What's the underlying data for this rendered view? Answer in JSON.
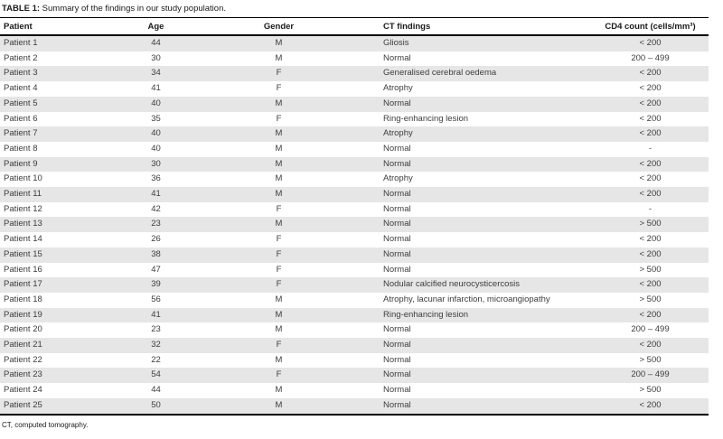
{
  "table": {
    "title_label": "TABLE 1:",
    "title_text": " Summary of the findings in our study population.",
    "columns": [
      "Patient",
      "Age",
      "Gender",
      "CT findings",
      "CD4 count (cells/mm³)"
    ],
    "rows": [
      [
        "Patient 1",
        "44",
        "M",
        "Gliosis",
        "< 200"
      ],
      [
        "Patient 2",
        "30",
        "M",
        "Normal",
        "200 – 499"
      ],
      [
        "Patient 3",
        "34",
        "F",
        "Generalised cerebral oedema",
        "< 200"
      ],
      [
        "Patient 4",
        "41",
        "F",
        "Atrophy",
        "< 200"
      ],
      [
        "Patient 5",
        "40",
        "M",
        "Normal",
        "< 200"
      ],
      [
        "Patient 6",
        "35",
        "F",
        "Ring-enhancing lesion",
        "< 200"
      ],
      [
        "Patient 7",
        "40",
        "M",
        "Atrophy",
        "< 200"
      ],
      [
        "Patient 8",
        "40",
        "M",
        "Normal",
        "-"
      ],
      [
        "Patient 9",
        "30",
        "M",
        "Normal",
        "< 200"
      ],
      [
        "Patient 10",
        "36",
        "M",
        "Atrophy",
        "< 200"
      ],
      [
        "Patient 11",
        "41",
        "M",
        "Normal",
        "< 200"
      ],
      [
        "Patient 12",
        "42",
        "F",
        "Normal",
        "-"
      ],
      [
        "Patient 13",
        "23",
        "M",
        "Normal",
        "> 500"
      ],
      [
        "Patient 14",
        "26",
        "F",
        "Normal",
        "< 200"
      ],
      [
        "Patient 15",
        "38",
        "F",
        "Normal",
        "< 200"
      ],
      [
        "Patient 16",
        "47",
        "F",
        "Normal",
        "> 500"
      ],
      [
        "Patient 17",
        "39",
        "F",
        "Nodular calcified neurocysticercosis",
        "< 200"
      ],
      [
        "Patient 18",
        "56",
        "M",
        "Atrophy, lacunar infarction, microangiopathy",
        "> 500"
      ],
      [
        "Patient 19",
        "41",
        "M",
        "Ring-enhancing lesion",
        "< 200"
      ],
      [
        "Patient 20",
        "23",
        "M",
        "Normal",
        "200 – 499"
      ],
      [
        "Patient 21",
        "32",
        "F",
        "Normal",
        "< 200"
      ],
      [
        "Patient 22",
        "22",
        "M",
        "Normal",
        "> 500"
      ],
      [
        "Patient 23",
        "54",
        "F",
        "Normal",
        "200 – 499"
      ],
      [
        "Patient 24",
        "44",
        "M",
        "Normal",
        "> 500"
      ],
      [
        "Patient 25",
        "50",
        "M",
        "Normal",
        "< 200"
      ]
    ],
    "footnote": "CT, computed tomography."
  },
  "colors": {
    "row_shade": "#e6e6e6",
    "rule": "#000000",
    "body_text": "#3d3d3d"
  }
}
